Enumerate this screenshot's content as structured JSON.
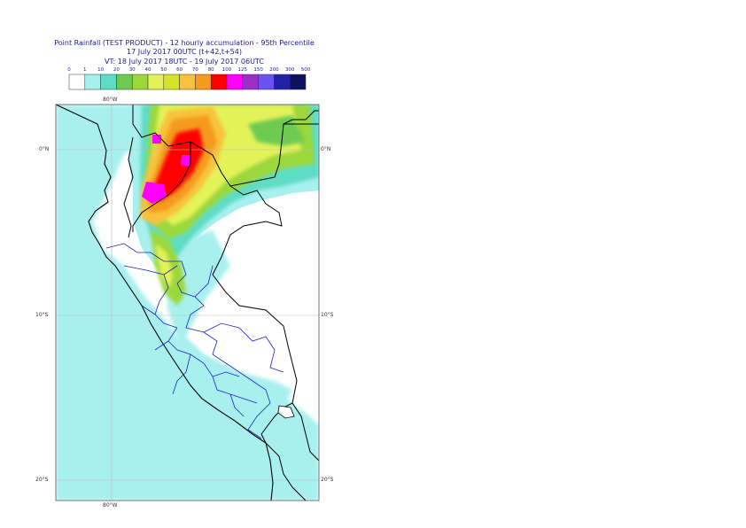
{
  "title": {
    "line1": "Point Rainfall (TEST PRODUCT) - 12 hourly accumulation - 95th Percentile",
    "line2": "17 July 2017 00UTC (t+42,t+54)",
    "line3": "VT: 18 July 2017 18UTC - 19 July 2017 06UTC"
  },
  "legend": {
    "thresholds": [
      "0",
      "1",
      "10",
      "20",
      "30",
      "40",
      "50",
      "60",
      "70",
      "80",
      "100",
      "125",
      "150",
      "200",
      "300",
      "500"
    ],
    "colors": [
      "#ffffff",
      "#a8f0ee",
      "#5fdcc4",
      "#6ecb4f",
      "#9bd83a",
      "#e4f25a",
      "#d7e22b",
      "#f7c33d",
      "#f59a1f",
      "#ff0000",
      "#ff00ff",
      "#9a2fc5",
      "#6a52f0",
      "#2121a6",
      "#10105e"
    ]
  },
  "map": {
    "lon_label_top": "80°W",
    "lon_label_bottom": "80°W",
    "lat_labels_left": [
      "0°N",
      "10°S",
      "20°S"
    ],
    "lat_labels_right": [
      "0°N",
      "10°S",
      "20°S"
    ]
  }
}
